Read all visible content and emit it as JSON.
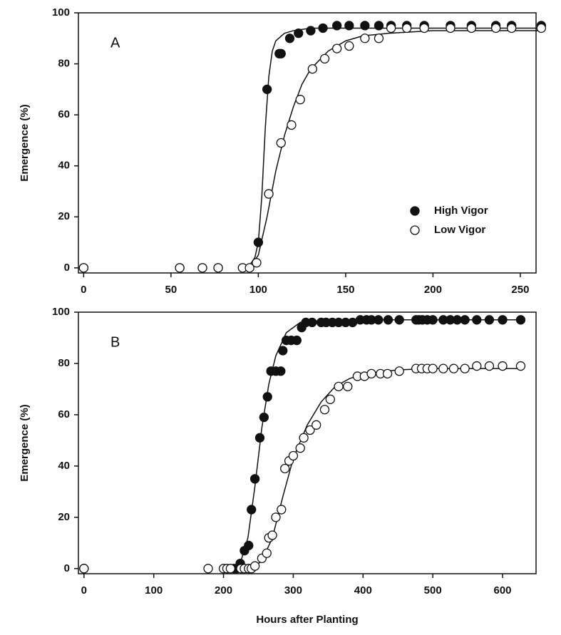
{
  "chart_data": [
    {
      "type": "scatter",
      "label": "A",
      "ylabel": "Emergence (%)",
      "xlim": [
        -3,
        259
      ],
      "ylim": [
        -2,
        100
      ],
      "xticks": [
        0,
        50,
        100,
        150,
        200,
        250
      ],
      "yticks": [
        0,
        20,
        40,
        60,
        80,
        100
      ],
      "legend": "lower right",
      "series": [
        {
          "name": "High Vigor",
          "color": "#111111",
          "marker": "filled",
          "x": [
            0,
            55,
            68,
            77,
            91,
            100,
            105,
            112,
            113,
            118,
            123,
            130,
            137,
            145,
            152,
            161,
            169,
            176,
            185,
            195,
            210,
            222,
            236,
            245,
            262
          ],
          "values": [
            0,
            0,
            0,
            0,
            0,
            10,
            70,
            84,
            84,
            90,
            92,
            93,
            94,
            95,
            95,
            95,
            95,
            95,
            95,
            95,
            95,
            95,
            95,
            95,
            95
          ]
        },
        {
          "name": "Low Vigor",
          "color": "#111111",
          "marker": "open",
          "x": [
            0,
            55,
            68,
            77,
            91,
            95,
            99,
            106,
            113,
            119,
            124,
            131,
            138,
            145,
            152,
            161,
            169,
            176,
            185,
            195,
            210,
            222,
            236,
            245,
            262
          ],
          "values": [
            0,
            0,
            0,
            0,
            0,
            0,
            2,
            29,
            49,
            56,
            66,
            78,
            82,
            86,
            87,
            90,
            90,
            94,
            94,
            94,
            94,
            94,
            94,
            94,
            94
          ]
        },
        {
          "color": "#111111",
          "marker": "line",
          "x": [
            90,
            95,
            98,
            100,
            102,
            104,
            106,
            108,
            110,
            115,
            120,
            130,
            150,
            263
          ],
          "values": [
            0,
            1,
            4,
            10,
            28,
            55,
            75,
            85,
            89,
            92,
            93,
            94,
            94,
            94
          ]
        },
        {
          "color": "#111111",
          "marker": "line",
          "x": [
            95,
            100,
            105,
            110,
            115,
            120,
            125,
            130,
            140,
            150,
            160,
            175,
            200,
            263
          ],
          "values": [
            0,
            5,
            20,
            38,
            52,
            63,
            72,
            78,
            85,
            89,
            91,
            92,
            93,
            93
          ]
        }
      ]
    },
    {
      "type": "scatter",
      "label": "B",
      "ylabel": "Emergence (%)",
      "xlabel": "Hours after Planting",
      "xlim": [
        -8,
        648
      ],
      "ylim": [
        -2,
        100
      ],
      "xticks": [
        0,
        100,
        200,
        300,
        400,
        500,
        600
      ],
      "yticks": [
        0,
        20,
        40,
        60,
        80,
        100
      ],
      "series": [
        {
          "color": "#111111",
          "marker": "filled",
          "x": [
            0,
            215,
            219,
            224,
            230,
            236,
            240,
            245,
            252,
            258,
            263,
            268,
            275,
            282,
            285,
            290,
            297,
            305,
            312,
            318,
            327,
            340,
            347,
            356,
            365,
            375,
            385,
            396,
            405,
            412,
            422,
            436,
            452,
            476,
            480,
            485,
            492,
            500,
            515,
            525,
            535,
            546,
            563,
            581,
            600,
            626
          ],
          "values": [
            0,
            0,
            0,
            2,
            7,
            9,
            23,
            35,
            51,
            59,
            67,
            77,
            77,
            77,
            85,
            89,
            89,
            89,
            94,
            96,
            96,
            96,
            96,
            96,
            96,
            96,
            96,
            97,
            97,
            97,
            97,
            97,
            97,
            97,
            97,
            97,
            97,
            97,
            97,
            97,
            97,
            97,
            97,
            97,
            97,
            97
          ]
        },
        {
          "color": "#111111",
          "marker": "open",
          "x": [
            0,
            178,
            200,
            205,
            210,
            225,
            230,
            236,
            240,
            245,
            255,
            262,
            265,
            270,
            275,
            283,
            288,
            294,
            300,
            310,
            315,
            324,
            333,
            345,
            353,
            365,
            378,
            392,
            402,
            412,
            425,
            435,
            452,
            476,
            484,
            492,
            500,
            515,
            530,
            546,
            563,
            581,
            600,
            626
          ],
          "values": [
            0,
            0,
            0,
            0,
            0,
            0,
            0,
            0,
            0,
            1,
            4,
            6,
            12,
            13,
            20,
            23,
            39,
            42,
            44,
            47,
            51,
            54,
            56,
            62,
            66,
            71,
            71,
            75,
            75,
            76,
            76,
            76,
            77,
            78,
            78,
            78,
            78,
            78,
            78,
            78,
            79,
            79,
            79,
            79
          ]
        },
        {
          "color": "#111111",
          "marker": "line",
          "x": [
            215,
            225,
            235,
            245,
            255,
            265,
            275,
            290,
            310,
            350,
            626
          ],
          "values": [
            0,
            3,
            12,
            32,
            55,
            72,
            83,
            92,
            96,
            97,
            97
          ]
        },
        {
          "color": "#111111",
          "marker": "line",
          "x": [
            240,
            255,
            270,
            285,
            300,
            320,
            340,
            360,
            380,
            400,
            450,
            500,
            626
          ],
          "values": [
            0,
            3,
            12,
            28,
            43,
            56,
            65,
            71,
            74,
            76,
            77.5,
            78,
            78
          ]
        }
      ]
    }
  ]
}
